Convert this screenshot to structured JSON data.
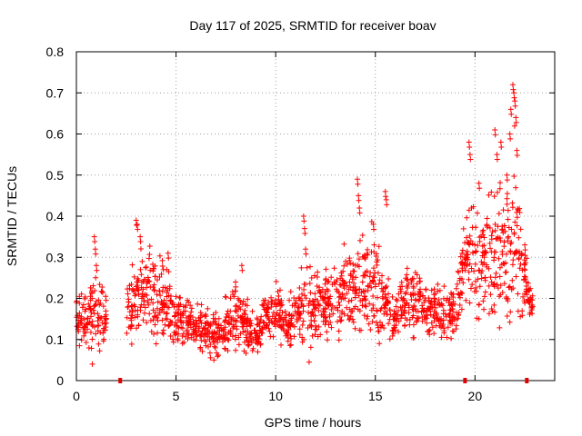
{
  "chart_data": {
    "type": "scatter",
    "title": "Day 117 of 2025, SRMTID for receiver boav",
    "xlabel": "GPS time / hours",
    "ylabel": "SRMTID / TECUs",
    "xlim": [
      0,
      24
    ],
    "ylim": [
      0,
      0.8
    ],
    "x_ticks": [
      0,
      5,
      10,
      15,
      20
    ],
    "x_tick_labels": [
      "0",
      "5",
      "10",
      "15",
      "20"
    ],
    "y_ticks": [
      0,
      0.1,
      0.2,
      0.3,
      0.4,
      0.5,
      0.6,
      0.7,
      0.8
    ],
    "y_tick_labels": [
      "0",
      "0.1",
      "0.2",
      "0.3",
      "0.4",
      "0.5",
      "0.6",
      "0.7",
      "0.8"
    ],
    "grid": true,
    "marker": "+",
    "color": "#ff0000",
    "gap_markers_x": [
      2.2,
      19.5,
      22.6
    ],
    "envelope": {
      "x": [
        0,
        0.5,
        1.0,
        1.5,
        2.0,
        2.5,
        3.0,
        3.5,
        4.0,
        4.5,
        5.0,
        5.5,
        6.0,
        6.5,
        7.0,
        7.5,
        8.0,
        8.5,
        9.0,
        9.5,
        10.0,
        10.5,
        11.0,
        11.5,
        12.0,
        12.5,
        13.0,
        13.5,
        14.0,
        14.5,
        15.0,
        15.5,
        16.0,
        16.5,
        17.0,
        17.5,
        18.0,
        18.5,
        19.0,
        19.5,
        20.0,
        20.5,
        21.0,
        21.5,
        22.0,
        22.5,
        22.9
      ],
      "center": [
        0.15,
        0.14,
        0.18,
        0.16,
        null,
        0.14,
        0.2,
        0.22,
        0.2,
        0.2,
        0.15,
        0.15,
        0.13,
        0.12,
        0.11,
        0.14,
        0.16,
        0.14,
        0.11,
        0.16,
        0.17,
        0.14,
        0.15,
        0.18,
        0.17,
        0.18,
        0.2,
        0.21,
        0.24,
        0.25,
        0.23,
        0.18,
        0.15,
        0.2,
        0.2,
        0.18,
        0.17,
        0.16,
        0.17,
        0.3,
        0.32,
        0.28,
        0.3,
        0.32,
        0.35,
        0.24,
        0.18
      ],
      "spread": [
        0.05,
        0.05,
        0.08,
        0.05,
        null,
        0.06,
        0.1,
        0.09,
        0.09,
        0.07,
        0.05,
        0.05,
        0.04,
        0.05,
        0.04,
        0.05,
        0.07,
        0.05,
        0.03,
        0.05,
        0.05,
        0.05,
        0.06,
        0.09,
        0.07,
        0.07,
        0.07,
        0.08,
        0.11,
        0.08,
        0.12,
        0.05,
        0.05,
        0.06,
        0.07,
        0.05,
        0.05,
        0.05,
        0.05,
        0.1,
        0.13,
        0.1,
        0.14,
        0.14,
        0.2,
        0.07,
        0.02
      ]
    },
    "spikes": [
      {
        "x": 0.9,
        "y": 0.35
      },
      {
        "x": 0.95,
        "y": 0.32
      },
      {
        "x": 1.0,
        "y": 0.28
      },
      {
        "x": 3.0,
        "y": 0.39
      },
      {
        "x": 3.05,
        "y": 0.38
      },
      {
        "x": 3.2,
        "y": 0.35
      },
      {
        "x": 4.6,
        "y": 0.31
      },
      {
        "x": 8.3,
        "y": 0.28
      },
      {
        "x": 11.4,
        "y": 0.4
      },
      {
        "x": 11.45,
        "y": 0.37
      },
      {
        "x": 11.5,
        "y": 0.32
      },
      {
        "x": 14.1,
        "y": 0.49
      },
      {
        "x": 14.15,
        "y": 0.45
      },
      {
        "x": 14.2,
        "y": 0.42
      },
      {
        "x": 14.9,
        "y": 0.38
      },
      {
        "x": 15.5,
        "y": 0.46
      },
      {
        "x": 15.55,
        "y": 0.44
      },
      {
        "x": 19.7,
        "y": 0.58
      },
      {
        "x": 19.75,
        "y": 0.55
      },
      {
        "x": 20.2,
        "y": 0.48
      },
      {
        "x": 21.0,
        "y": 0.61
      },
      {
        "x": 21.3,
        "y": 0.58
      },
      {
        "x": 21.1,
        "y": 0.55
      },
      {
        "x": 21.9,
        "y": 0.72
      },
      {
        "x": 21.95,
        "y": 0.7
      },
      {
        "x": 22.0,
        "y": 0.68
      },
      {
        "x": 21.8,
        "y": 0.66
      },
      {
        "x": 22.05,
        "y": 0.64
      },
      {
        "x": 21.75,
        "y": 0.6
      },
      {
        "x": 22.1,
        "y": 0.56
      },
      {
        "x": 21.6,
        "y": 0.5
      },
      {
        "x": 22.5,
        "y": 0.33
      }
    ],
    "lows": [
      {
        "x": 0.8,
        "y": 0.04
      },
      {
        "x": 6.9,
        "y": 0.05
      },
      {
        "x": 9.1,
        "y": 0.07
      },
      {
        "x": 15.2,
        "y": 0.09
      }
    ]
  }
}
